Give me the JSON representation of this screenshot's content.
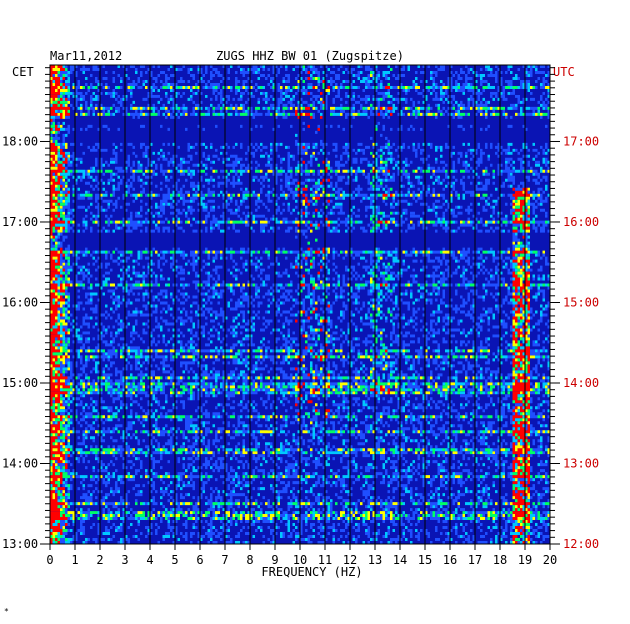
{
  "header": {
    "date": "Mar11,2012",
    "station": "ZUGS HHZ BW 01 (Zugspitze)"
  },
  "footer": {
    "mark": "*"
  },
  "chart_data": {
    "type": "heatmap",
    "title": "ZUGS HHZ BW 01 (Zugspitze)",
    "xlabel": "FREQUENCY (HZ)",
    "xlim": [
      0,
      20
    ],
    "x_ticks": [
      "0",
      "1",
      "2",
      "3",
      "4",
      "5",
      "6",
      "7",
      "8",
      "9",
      "10",
      "11",
      "12",
      "13",
      "14",
      "15",
      "16",
      "17",
      "18",
      "19",
      "20"
    ],
    "left_axis": {
      "label": "CET",
      "ticks": [
        "13:00",
        "14:00",
        "15:00",
        "16:00",
        "17:00",
        "18:00"
      ],
      "range_hours": [
        13,
        18.95
      ],
      "color": "#000000"
    },
    "right_axis": {
      "label": "UTC",
      "ticks": [
        "12:00",
        "13:00",
        "14:00",
        "15:00",
        "16:00",
        "17:00"
      ],
      "range_hours": [
        12,
        17.95
      ],
      "color": "#cc0000"
    },
    "colormap": [
      "#000066",
      "#0000cc",
      "#1f4fff",
      "#00c8ff",
      "#00ff66",
      "#ffff00",
      "#ff0000"
    ],
    "features": [
      {
        "name": "low-frequency energy",
        "freq_range": [
          0,
          0.8
        ]
      },
      {
        "name": "tonal line",
        "freq_range": [
          18.5,
          19.2
        ]
      },
      {
        "name": "tonal line",
        "freq_range": [
          12.8,
          13.7
        ]
      }
    ]
  }
}
